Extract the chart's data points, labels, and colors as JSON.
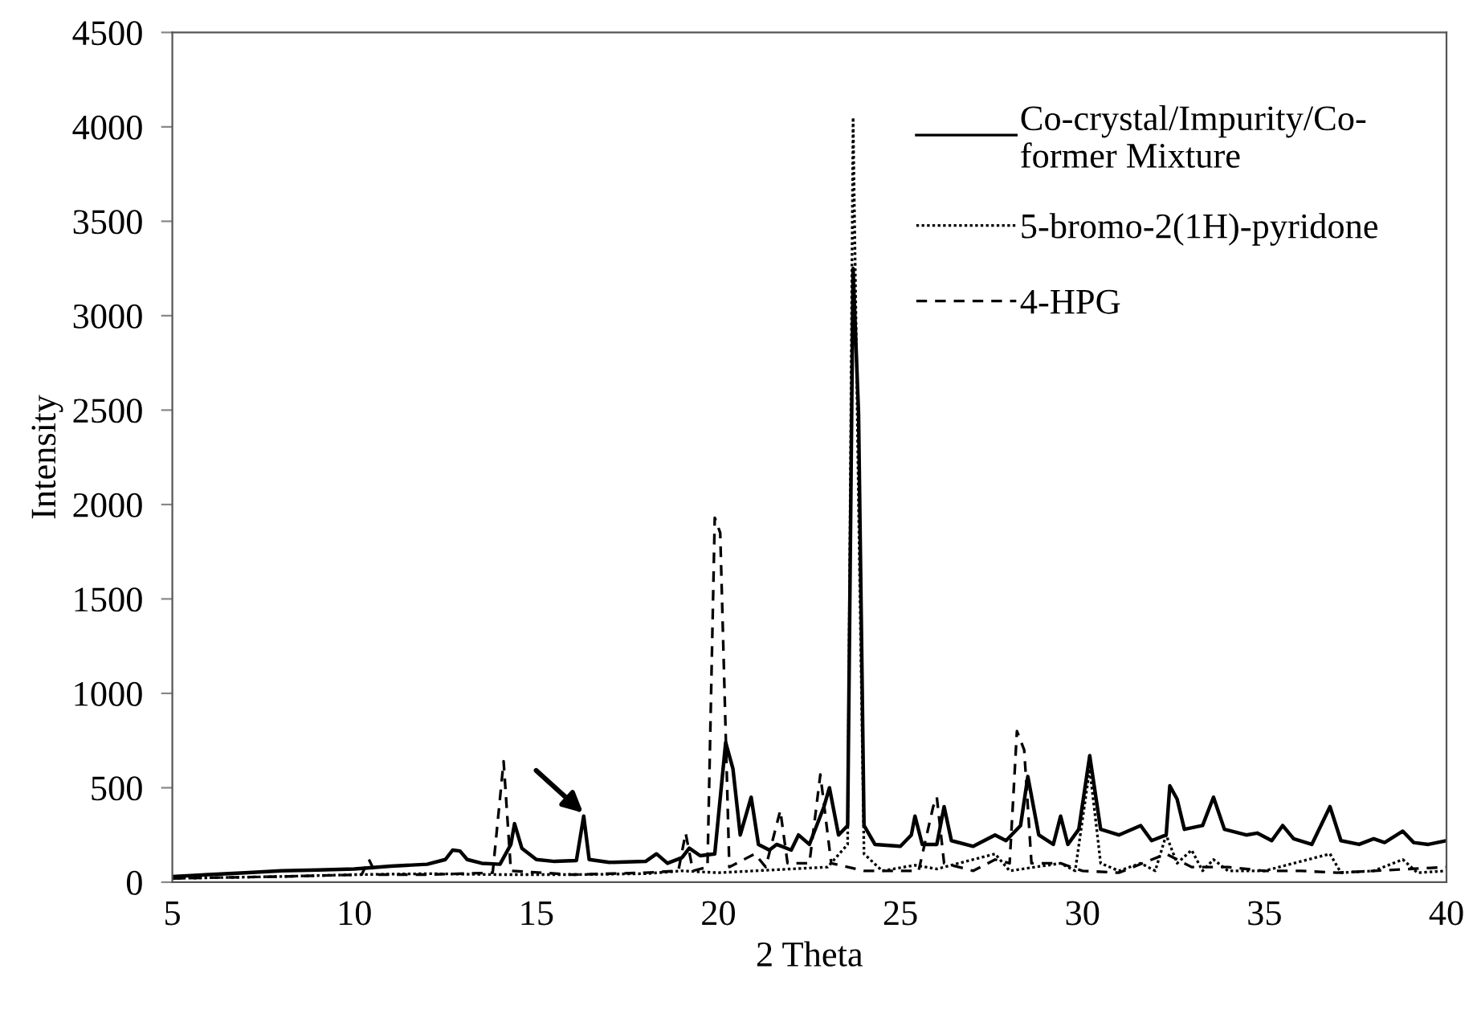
{
  "chart_data": {
    "type": "line",
    "xlabel": "2 Theta",
    "ylabel": "Intensity",
    "xlim": [
      5,
      40
    ],
    "ylim": [
      0,
      4500
    ],
    "xticks": [
      5,
      10,
      15,
      20,
      25,
      30,
      35,
      40
    ],
    "yticks": [
      0,
      500,
      1000,
      1500,
      2000,
      2500,
      3000,
      3500,
      4000,
      4500
    ],
    "grid": false,
    "legend": "top right",
    "marker": "none",
    "series": [
      {
        "name": "Co-crystal/Impurity/Co-former Mixture",
        "color": "#000000",
        "line_style": "solid",
        "x": [
          5,
          6,
          7,
          8,
          9,
          10,
          11,
          12,
          12.5,
          12.7,
          12.9,
          13.1,
          13.5,
          14.0,
          14.3,
          14.4,
          14.6,
          15,
          15.5,
          16.1,
          16.3,
          16.45,
          17,
          18,
          18.3,
          18.6,
          19.0,
          19.2,
          19.5,
          19.9,
          20.2,
          20.4,
          20.6,
          20.9,
          21.1,
          21.4,
          21.6,
          22.0,
          22.2,
          22.5,
          22.9,
          23.05,
          23.3,
          23.55,
          23.7,
          23.85,
          24.0,
          24.3,
          25,
          25.3,
          25.4,
          25.6,
          26.0,
          26.2,
          26.4,
          27,
          27.6,
          27.9,
          28.3,
          28.5,
          28.8,
          29.2,
          29.4,
          29.6,
          29.9,
          30.2,
          30.5,
          31,
          31.6,
          31.9,
          32.3,
          32.4,
          32.6,
          32.8,
          33.3,
          33.6,
          33.9,
          34.5,
          34.8,
          35.2,
          35.5,
          35.8,
          36.3,
          36.8,
          37.1,
          37.6,
          38.0,
          38.3,
          38.8,
          39.1,
          39.5,
          40
        ],
        "values": [
          30,
          40,
          50,
          60,
          65,
          70,
          85,
          95,
          120,
          170,
          165,
          120,
          100,
          95,
          200,
          310,
          180,
          120,
          110,
          115,
          350,
          120,
          105,
          110,
          150,
          100,
          130,
          180,
          140,
          150,
          740,
          600,
          250,
          450,
          200,
          170,
          200,
          170,
          250,
          200,
          400,
          500,
          250,
          300,
          3250,
          2480,
          300,
          200,
          190,
          250,
          350,
          200,
          200,
          400,
          220,
          190,
          250,
          220,
          300,
          560,
          250,
          200,
          350,
          200,
          280,
          670,
          280,
          250,
          300,
          220,
          250,
          510,
          440,
          280,
          300,
          450,
          280,
          250,
          260,
          220,
          300,
          230,
          200,
          400,
          220,
          200,
          230,
          210,
          270,
          210,
          200,
          220
        ]
      },
      {
        "name": "5-bromo-2(1H)-pyridone",
        "color": "#000000",
        "line_style": "dotted",
        "x": [
          5,
          8,
          10,
          12,
          14,
          16,
          18,
          19,
          20,
          21,
          22,
          23,
          23.55,
          23.7,
          23.85,
          24.0,
          24.5,
          25.4,
          26,
          27.6,
          28,
          29.4,
          29.8,
          30.2,
          30.5,
          31,
          31.6,
          32,
          32.3,
          32.6,
          33,
          33.3,
          33.6,
          34,
          35,
          36.8,
          37.1,
          38,
          38.8,
          39.2,
          40
        ],
        "values": [
          20,
          30,
          40,
          45,
          40,
          40,
          45,
          60,
          50,
          60,
          70,
          80,
          200,
          4050,
          2000,
          150,
          60,
          90,
          70,
          150,
          60,
          100,
          60,
          600,
          100,
          60,
          100,
          60,
          250,
          100,
          170,
          60,
          120,
          60,
          60,
          150,
          50,
          60,
          120,
          50,
          60
        ]
      },
      {
        "name": "4-HPG",
        "color": "#000000",
        "line_style": "dashed",
        "x": [
          5,
          8,
          10.2,
          10.4,
          10.6,
          12,
          13.8,
          14.1,
          14.3,
          16,
          18,
          18.9,
          19.1,
          19.3,
          19.7,
          19.9,
          20.05,
          20.3,
          21.0,
          21.3,
          21.7,
          21.9,
          22.5,
          22.8,
          23.1,
          24,
          25.5,
          25.9,
          26.0,
          26.2,
          27,
          27.6,
          28.0,
          28.2,
          28.4,
          28.6,
          29.4,
          30,
          31,
          32.3,
          33,
          34,
          35,
          36,
          37,
          38,
          39,
          40
        ],
        "values": [
          20,
          30,
          40,
          120,
          40,
          40,
          50,
          640,
          60,
          40,
          50,
          60,
          260,
          60,
          80,
          1930,
          1850,
          80,
          150,
          80,
          380,
          100,
          100,
          570,
          100,
          60,
          60,
          400,
          450,
          100,
          60,
          120,
          100,
          800,
          700,
          100,
          100,
          60,
          50,
          150,
          80,
          80,
          60,
          60,
          50,
          60,
          70,
          80
        ]
      }
    ]
  }
}
